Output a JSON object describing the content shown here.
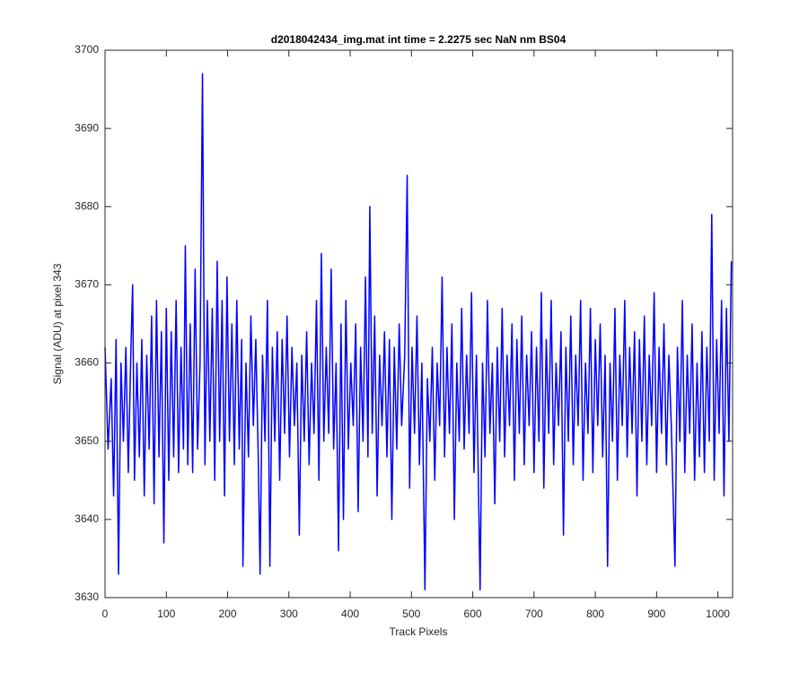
{
  "chart_data": {
    "type": "line",
    "title": "d2018042434_img.mat int time = 2.2275 sec  NaN nm BS04",
    "x_label": "Track Pixels",
    "y_label": "Signal (ADU) at pixel 343",
    "color": "#0000ff",
    "xlim": [
      0,
      1024
    ],
    "ylim": [
      3630,
      3700
    ],
    "xticks": [
      0,
      100,
      200,
      300,
      400,
      500,
      600,
      700,
      800,
      900,
      1000
    ],
    "yticks": [
      3630,
      3640,
      3650,
      3660,
      3670,
      3680,
      3690,
      3700
    ],
    "x": [
      0,
      5,
      10,
      14,
      18,
      22,
      26,
      30,
      34,
      38,
      42,
      45,
      48,
      52,
      56,
      60,
      64,
      68,
      72,
      76,
      80,
      84,
      88,
      92,
      96,
      100,
      104,
      108,
      112,
      116,
      120,
      124,
      128,
      131,
      135,
      139,
      143,
      147,
      151,
      155,
      159,
      163,
      167,
      171,
      175,
      179,
      183,
      187,
      191,
      195,
      199,
      203,
      207,
      211,
      215,
      219,
      223,
      225,
      230,
      234,
      238,
      242,
      246,
      250,
      253,
      257,
      261,
      265,
      269,
      273,
      277,
      281,
      285,
      289,
      293,
      297,
      301,
      305,
      309,
      313,
      317,
      321,
      325,
      329,
      333,
      337,
      341,
      345,
      349,
      353,
      357,
      361,
      365,
      369,
      373,
      377,
      381,
      385,
      389,
      393,
      397,
      401,
      405,
      409,
      413,
      417,
      421,
      425,
      429,
      432,
      436,
      440,
      444,
      448,
      452,
      456,
      460,
      464,
      468,
      472,
      476,
      480,
      484,
      489,
      493,
      497,
      501,
      505,
      509,
      513,
      517,
      522,
      526,
      530,
      534,
      538,
      542,
      546,
      550,
      554,
      558,
      562,
      566,
      570,
      574,
      578,
      582,
      586,
      590,
      594,
      598,
      602,
      606,
      612,
      616,
      620,
      624,
      628,
      632,
      636,
      640,
      644,
      648,
      652,
      656,
      660,
      664,
      668,
      672,
      676,
      680,
      684,
      688,
      692,
      696,
      700,
      704,
      708,
      712,
      716,
      720,
      724,
      728,
      732,
      736,
      740,
      744,
      748,
      752,
      756,
      760,
      764,
      768,
      772,
      776,
      780,
      784,
      788,
      792,
      796,
      800,
      804,
      808,
      812,
      816,
      820,
      824,
      828,
      832,
      836,
      840,
      844,
      848,
      852,
      856,
      860,
      864,
      868,
      872,
      876,
      880,
      884,
      888,
      892,
      896,
      900,
      904,
      908,
      912,
      916,
      920,
      924,
      930,
      934,
      938,
      942,
      946,
      950,
      954,
      958,
      962,
      966,
      970,
      974,
      978,
      982,
      986,
      990,
      994,
      998,
      1002,
      1006,
      1010,
      1014,
      1018,
      1022
    ],
    "values": [
      3662,
      3649,
      3658,
      3643,
      3663,
      3633,
      3660,
      3650,
      3662,
      3646,
      3661,
      3670,
      3645,
      3660,
      3648,
      3663,
      3643,
      3661,
      3649,
      3666,
      3642,
      3668,
      3648,
      3664,
      3637,
      3667,
      3645,
      3664,
      3648,
      3668,
      3646,
      3662,
      3649,
      3675,
      3647,
      3665,
      3646,
      3672,
      3649,
      3660,
      3697,
      3647,
      3668,
      3650,
      3667,
      3645,
      3673,
      3650,
      3668,
      3643,
      3671,
      3650,
      3665,
      3647,
      3668,
      3649,
      3663,
      3634,
      3660,
      3648,
      3666,
      3652,
      3663,
      3648,
      3633,
      3661,
      3650,
      3668,
      3634,
      3662,
      3650,
      3664,
      3645,
      3663,
      3651,
      3666,
      3648,
      3662,
      3652,
      3660,
      3638,
      3661,
      3650,
      3664,
      3647,
      3660,
      3651,
      3668,
      3645,
      3674,
      3650,
      3662,
      3651,
      3672,
      3649,
      3660,
      3636,
      3665,
      3640,
      3668,
      3649,
      3660,
      3652,
      3665,
      3641,
      3662,
      3650,
      3671,
      3648,
      3680,
      3651,
      3666,
      3643,
      3661,
      3652,
      3664,
      3648,
      3663,
      3640,
      3662,
      3649,
      3665,
      3652,
      3661,
      3684,
      3644,
      3662,
      3651,
      3666,
      3647,
      3660,
      3631,
      3658,
      3650,
      3662,
      3645,
      3660,
      3652,
      3671,
      3648,
      3662,
      3651,
      3665,
      3640,
      3660,
      3650,
      3667,
      3649,
      3661,
      3651,
      3669,
      3646,
      3661,
      3631,
      3660,
      3648,
      3668,
      3651,
      3660,
      3642,
      3662,
      3650,
      3667,
      3648,
      3661,
      3652,
      3665,
      3645,
      3663,
      3651,
      3666,
      3647,
      3661,
      3652,
      3664,
      3646,
      3662,
      3650,
      3669,
      3644,
      3663,
      3651,
      3668,
      3647,
      3660,
      3652,
      3664,
      3638,
      3662,
      3650,
      3666,
      3647,
      3661,
      3652,
      3668,
      3645,
      3660,
      3651,
      3667,
      3646,
      3663,
      3652,
      3665,
      3648,
      3661,
      3634,
      3660,
      3650,
      3667,
      3645,
      3661,
      3652,
      3668,
      3648,
      3662,
      3651,
      3664,
      3643,
      3663,
      3650,
      3666,
      3647,
      3661,
      3652,
      3669,
      3646,
      3662,
      3651,
      3665,
      3647,
      3661,
      3652,
      3634,
      3662,
      3650,
      3668,
      3646,
      3661,
      3651,
      3665,
      3645,
      3660,
      3648,
      3664,
      3646,
      3662,
      3650,
      3679,
      3645,
      3663,
      3651,
      3668,
      3643,
      3667,
      3650,
      3673
    ]
  }
}
